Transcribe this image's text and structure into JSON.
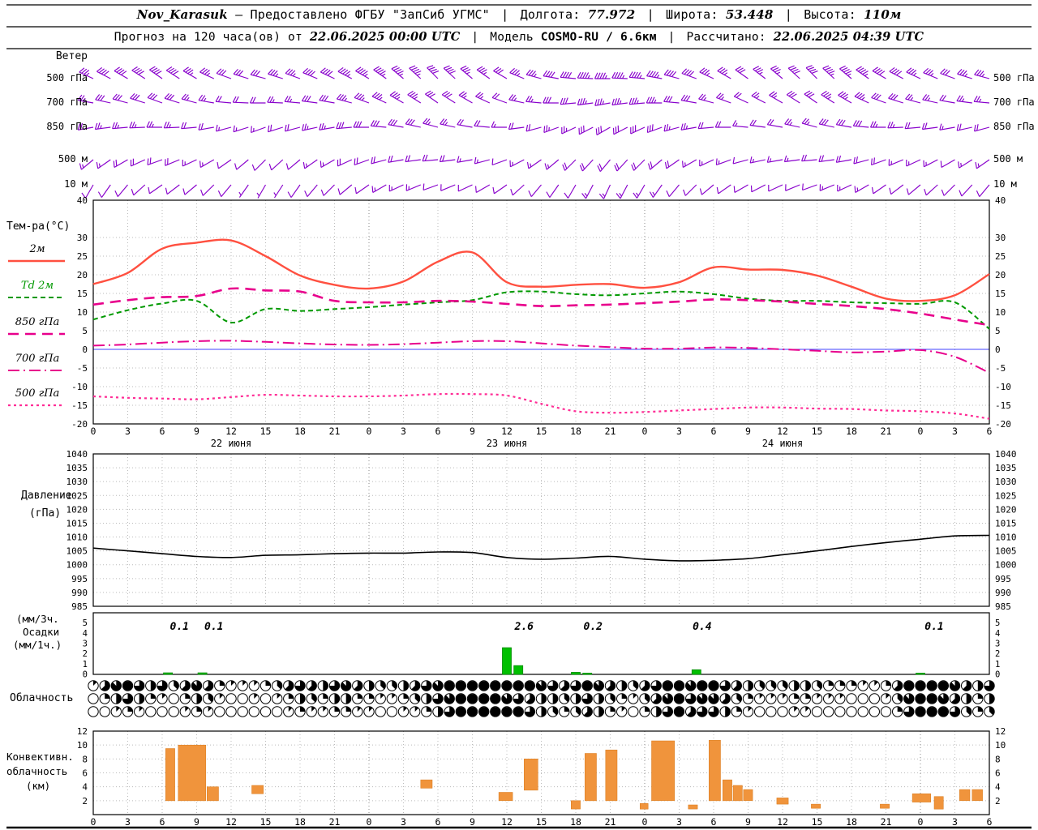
{
  "header": {
    "line1": {
      "station": "Nov_Karasuk",
      "dash": "–",
      "provided": "Предоставлено ФГБУ \"ЗапСиб УГМС\"",
      "sep": "|",
      "lon_label": "Долгота:",
      "lon": "77.972",
      "lat_label": "Широта:",
      "lat": "53.448",
      "alt_label": "Высота:",
      "alt": "110м"
    },
    "line2": {
      "prefix": "Прогноз на 120 часа(ов) от",
      "init_time": "22.06.2025 00:00 UTC",
      "sep": "|",
      "model_label": "Модель",
      "model": "COSMO-RU / 6.6км",
      "calc_label": "Рассчитано:",
      "calc_time": "22.06.2025 04:39 UTC"
    }
  },
  "panel_labels": {
    "wind_title": "Ветер",
    "wind_levels": [
      "500 гПа",
      "700 гПа",
      "850 гПа",
      "500 м",
      "10 м"
    ],
    "temp_title": "Тем-ра(°C)",
    "pressure_label": [
      "Давление",
      "(гПа)"
    ],
    "precip_label": [
      "(мм/3ч.",
      "Осадки",
      "(мм/1ч.)"
    ],
    "cloud_label": "Облачность",
    "conv_label": [
      "Конвективн.",
      "облачность",
      "(км)"
    ]
  },
  "axes": {
    "x": {
      "span_h": 78,
      "tick_step_h": 3,
      "hour_labels": [
        "0",
        "3",
        "6",
        "9",
        "12",
        "15",
        "18",
        "21"
      ],
      "date_labels": [
        "22 июня",
        "23 июня",
        "24 июня"
      ]
    },
    "temp_ticks": [
      40,
      30,
      25,
      20,
      15,
      10,
      5,
      0,
      -5,
      -10,
      -15,
      -20
    ],
    "pressure_ticks": [
      1040,
      1035,
      1030,
      1025,
      1020,
      1015,
      1010,
      1005,
      1000,
      995,
      990,
      985
    ],
    "precip_ticks": [
      5,
      4,
      3,
      2,
      1,
      0
    ],
    "conv_ticks": [
      12,
      10,
      8,
      6,
      4,
      2
    ]
  },
  "colors": {
    "wind_barb": "#8800cc",
    "grid": "#bbbbbb",
    "grid_day": "#888888",
    "axis": "#000000",
    "zero_line": "#4040ff",
    "precip_bar": "#00c000",
    "conv_bar": "#f0943c",
    "t2m": "#ff5040",
    "td2m": "#009900",
    "t850": "#e8008c",
    "t700": "#e8008c",
    "t500": "#ff2d96"
  },
  "chart_data": [
    {
      "type": "wind-barbs",
      "title": "Ветер",
      "x_step_h": 3,
      "levels": [
        {
          "name": "500 гПа",
          "dirs": [
            295,
            300,
            305,
            300,
            290,
            285,
            290,
            295,
            300,
            310,
            315,
            310,
            300,
            285,
            275,
            270,
            275,
            285,
            295,
            305,
            310,
            315,
            310,
            300,
            295,
            290,
            285
          ],
          "speeds_kt": [
            35,
            40,
            40,
            35,
            30,
            30,
            35,
            40,
            45,
            45,
            40,
            35,
            30,
            35,
            40,
            45,
            45,
            40,
            35,
            30,
            35,
            40,
            45,
            40,
            35,
            30,
            35
          ]
        },
        {
          "name": "700 гПа",
          "dirs": [
            280,
            285,
            290,
            285,
            275,
            270,
            275,
            280,
            290,
            300,
            305,
            300,
            290,
            275,
            265,
            260,
            265,
            275,
            285,
            295,
            300,
            305,
            300,
            290,
            285,
            280,
            275
          ],
          "speeds_kt": [
            25,
            30,
            30,
            25,
            20,
            20,
            25,
            30,
            35,
            35,
            30,
            25,
            20,
            25,
            30,
            35,
            35,
            30,
            25,
            20,
            25,
            30,
            35,
            30,
            25,
            20,
            25
          ]
        },
        {
          "name": "850 гПа",
          "dirs": [
            260,
            265,
            270,
            265,
            255,
            250,
            255,
            260,
            270,
            280,
            285,
            280,
            270,
            255,
            245,
            240,
            245,
            255,
            265,
            275,
            280,
            285,
            280,
            270,
            265,
            260,
            255
          ],
          "speeds_kt": [
            20,
            25,
            25,
            20,
            15,
            15,
            20,
            25,
            30,
            30,
            25,
            20,
            15,
            20,
            25,
            30,
            30,
            25,
            20,
            15,
            20,
            25,
            30,
            25,
            20,
            15,
            20
          ]
        },
        {
          "name": "500 м",
          "dirs": [
            230,
            240,
            250,
            245,
            235,
            225,
            230,
            240,
            250,
            260,
            265,
            260,
            250,
            235,
            225,
            220,
            225,
            235,
            245,
            255,
            260,
            265,
            260,
            250,
            245,
            240,
            235
          ],
          "speeds_kt": [
            15,
            18,
            20,
            15,
            12,
            10,
            12,
            15,
            20,
            22,
            20,
            15,
            12,
            15,
            18,
            22,
            22,
            18,
            15,
            12,
            15,
            18,
            22,
            18,
            15,
            12,
            15
          ]
        },
        {
          "name": "10 м",
          "dirs": [
            210,
            220,
            235,
            230,
            220,
            210,
            215,
            225,
            235,
            245,
            250,
            245,
            235,
            220,
            210,
            205,
            210,
            220,
            230,
            240,
            245,
            250,
            245,
            235,
            230,
            225,
            220
          ],
          "speeds_kt": [
            8,
            10,
            12,
            10,
            8,
            6,
            8,
            10,
            12,
            15,
            12,
            10,
            8,
            10,
            12,
            15,
            15,
            12,
            10,
            8,
            10,
            12,
            15,
            12,
            10,
            8,
            10
          ]
        }
      ]
    },
    {
      "type": "line",
      "title": "Тем-ра(°C)",
      "x_step_h": 3,
      "ylim": [
        -20,
        40
      ],
      "series": [
        {
          "name": "2м",
          "color": "#ff5040",
          "dash": "solid",
          "width": 2.4,
          "values": [
            17.5,
            20.5,
            27,
            28.6,
            29.2,
            25,
            19.8,
            17.3,
            16.3,
            18.2,
            23.5,
            26,
            18,
            16.8,
            17.3,
            17.5,
            16.5,
            18,
            22,
            21.4,
            21.3,
            19.8,
            16.8,
            13.6,
            13,
            14.5,
            20.2
          ]
        },
        {
          "name": "Td 2м",
          "color": "#009900",
          "dash": "6 4",
          "width": 2,
          "values": [
            8,
            10.5,
            12.3,
            13,
            7.2,
            10.8,
            10.3,
            10.8,
            11.3,
            12,
            12.6,
            13.2,
            15.3,
            15.5,
            14.8,
            14.5,
            15,
            15.5,
            14.8,
            13.6,
            13,
            13,
            12.6,
            12.4,
            12.2,
            12.6,
            5.5
          ]
        },
        {
          "name": "850 гПа",
          "color": "#e8008c",
          "dash": "13 8",
          "width": 2.6,
          "values": [
            12,
            13.2,
            14,
            14.3,
            16.3,
            15.8,
            15.5,
            13,
            12.6,
            12.6,
            13,
            12.8,
            12.2,
            11.6,
            11.8,
            12,
            12.4,
            12.8,
            13.4,
            13.2,
            12.8,
            12.2,
            11.6,
            10.8,
            9.6,
            8,
            6.5
          ]
        },
        {
          "name": "700 гПа",
          "color": "#e8008c",
          "dash": "14 5 2 5",
          "width": 2,
          "values": [
            1,
            1.3,
            1.8,
            2.2,
            2.3,
            2,
            1.6,
            1.3,
            1.2,
            1.4,
            1.8,
            2.2,
            2.2,
            1.6,
            1,
            0.6,
            0.2,
            0.2,
            0.5,
            0.4,
            0,
            -0.4,
            -0.8,
            -0.6,
            -0.2,
            -2,
            -6.3
          ]
        },
        {
          "name": "500 гПа",
          "color": "#ff2d96",
          "dash": "3 4",
          "width": 2.2,
          "values": [
            -12.6,
            -13,
            -13.2,
            -13.4,
            -12.8,
            -12.2,
            -12.4,
            -12.6,
            -12.6,
            -12.4,
            -12,
            -12,
            -12.4,
            -14.6,
            -16.6,
            -17,
            -16.8,
            -16.4,
            -16,
            -15.6,
            -15.6,
            -15.9,
            -16,
            -16.4,
            -16.6,
            -17.2,
            -18.6
          ]
        }
      ]
    },
    {
      "type": "line",
      "title": "Давление (гПа)",
      "x_step_h": 3,
      "ylim": [
        985,
        1040
      ],
      "series": [
        {
          "name": "Давление",
          "color": "#000000",
          "dash": "solid",
          "width": 1.6,
          "values": [
            1006,
            1005,
            1004,
            1003,
            1002.6,
            1003.4,
            1003.6,
            1004,
            1004.2,
            1004.2,
            1004.6,
            1004.4,
            1002.6,
            1002,
            1002.4,
            1003,
            1002,
            1001.4,
            1001.6,
            1002.2,
            1003.6,
            1005,
            1006.6,
            1008,
            1009.2,
            1010.4,
            1010.6
          ]
        }
      ]
    },
    {
      "type": "bar",
      "title": "Осадки (мм/3ч., мм/1ч.)",
      "ylim": [
        0,
        6
      ],
      "bars": [
        {
          "t": 6.5,
          "v": 0.15
        },
        {
          "t": 9.5,
          "v": 0.15
        },
        {
          "t": 36,
          "v": 2.6
        },
        {
          "t": 37,
          "v": 0.85
        },
        {
          "t": 42,
          "v": 0.2
        },
        {
          "t": 43,
          "v": 0.12
        },
        {
          "t": 52.5,
          "v": 0.45
        },
        {
          "t": 72,
          "v": 0.12
        }
      ],
      "value_labels": [
        {
          "t": 7.5,
          "text": "0.1"
        },
        {
          "t": 10.5,
          "text": "0.1"
        },
        {
          "t": 37.5,
          "text": "2.6"
        },
        {
          "t": 43.5,
          "text": "0.2"
        },
        {
          "t": 53,
          "text": "0.4"
        },
        {
          "t": 73.2,
          "text": "0.1"
        }
      ]
    },
    {
      "type": "cloud-cover-octas",
      "title": "Облачность",
      "x_step_h": 1,
      "rows": [
        [
          1,
          5,
          7,
          8,
          6,
          4,
          6,
          3,
          5,
          7,
          5,
          2,
          1,
          1,
          1,
          2,
          3,
          5,
          6,
          5,
          4,
          6,
          7,
          5,
          4,
          3,
          3,
          4,
          5,
          6,
          7,
          8,
          8,
          8,
          8,
          8,
          8,
          8,
          8,
          7,
          6,
          5,
          6,
          8,
          7,
          5,
          4,
          3,
          5,
          6,
          8,
          8,
          7,
          8,
          8,
          6,
          5,
          4,
          3,
          3,
          3,
          4,
          4,
          3,
          2,
          2,
          2,
          1,
          1,
          2,
          5,
          8,
          8,
          8,
          8,
          7,
          5,
          4,
          6
        ],
        [
          0,
          2,
          4,
          6,
          4,
          2,
          1,
          0,
          2,
          4,
          3,
          1,
          0,
          0,
          1,
          0,
          1,
          2,
          4,
          3,
          2,
          4,
          4,
          2,
          2,
          1,
          1,
          2,
          3,
          4,
          6,
          7,
          8,
          8,
          8,
          8,
          7,
          6,
          5,
          4,
          4,
          3,
          4,
          6,
          4,
          3,
          2,
          1,
          3,
          5,
          7,
          8,
          6,
          7,
          7,
          5,
          3,
          2,
          1,
          1,
          1,
          2,
          2,
          1,
          1,
          1,
          0,
          0,
          0,
          1,
          3,
          7,
          8,
          8,
          7,
          5,
          4,
          2,
          4
        ],
        [
          0,
          0,
          1,
          2,
          1,
          0,
          0,
          0,
          1,
          2,
          1,
          0,
          0,
          0,
          0,
          0,
          0,
          1,
          2,
          1,
          1,
          2,
          2,
          1,
          1,
          0,
          0,
          1,
          1,
          2,
          4,
          6,
          8,
          8,
          8,
          8,
          8,
          8,
          6,
          4,
          3,
          2,
          3,
          5,
          4,
          2,
          1,
          0,
          2,
          4,
          6,
          8,
          5,
          6,
          6,
          4,
          2,
          1,
          0,
          0,
          0,
          1,
          1,
          0,
          0,
          0,
          0,
          0,
          0,
          0,
          2,
          6,
          8,
          8,
          8,
          6,
          3,
          2,
          3
        ]
      ]
    },
    {
      "type": "bar-range",
      "title": "Конвективная облачность (км)",
      "ylim": [
        0,
        12
      ],
      "bars": [
        {
          "t": 6.3,
          "w": 0.8,
          "base": 2,
          "top": 9.5
        },
        {
          "t": 7.4,
          "w": 2.4,
          "base": 2,
          "top": 10
        },
        {
          "t": 9.9,
          "w": 1.0,
          "base": 2,
          "top": 4
        },
        {
          "t": 13.8,
          "w": 1.0,
          "base": 3,
          "top": 4.2
        },
        {
          "t": 28.5,
          "w": 1.0,
          "base": 3.8,
          "top": 5
        },
        {
          "t": 35.3,
          "w": 1.2,
          "base": 2,
          "top": 3.2
        },
        {
          "t": 37.5,
          "w": 1.2,
          "base": 3.5,
          "top": 8
        },
        {
          "t": 41.6,
          "w": 0.8,
          "base": 0.8,
          "top": 2
        },
        {
          "t": 42.8,
          "w": 1.0,
          "base": 2,
          "top": 8.8
        },
        {
          "t": 44.6,
          "w": 1.0,
          "base": 2,
          "top": 9.3
        },
        {
          "t": 47.6,
          "w": 0.7,
          "base": 0.8,
          "top": 1.6
        },
        {
          "t": 48.6,
          "w": 2.0,
          "base": 2,
          "top": 10.6
        },
        {
          "t": 51.8,
          "w": 0.8,
          "base": 0.8,
          "top": 1.4
        },
        {
          "t": 53.6,
          "w": 1.0,
          "base": 2,
          "top": 10.7
        },
        {
          "t": 54.8,
          "w": 0.8,
          "base": 2,
          "top": 5
        },
        {
          "t": 55.7,
          "w": 0.8,
          "base": 2,
          "top": 4.2
        },
        {
          "t": 56.6,
          "w": 0.8,
          "base": 2,
          "top": 3.6
        },
        {
          "t": 59.5,
          "w": 1.0,
          "base": 1.5,
          "top": 2.4
        },
        {
          "t": 62.5,
          "w": 0.8,
          "base": 0.9,
          "top": 1.5
        },
        {
          "t": 68.5,
          "w": 0.8,
          "base": 0.9,
          "top": 1.5
        },
        {
          "t": 71.3,
          "w": 1.6,
          "base": 1.8,
          "top": 3
        },
        {
          "t": 73.2,
          "w": 0.8,
          "base": 0.8,
          "top": 2.6
        },
        {
          "t": 75.4,
          "w": 0.9,
          "base": 2,
          "top": 3.6
        },
        {
          "t": 76.5,
          "w": 0.9,
          "base": 2,
          "top": 3.6
        }
      ]
    }
  ]
}
